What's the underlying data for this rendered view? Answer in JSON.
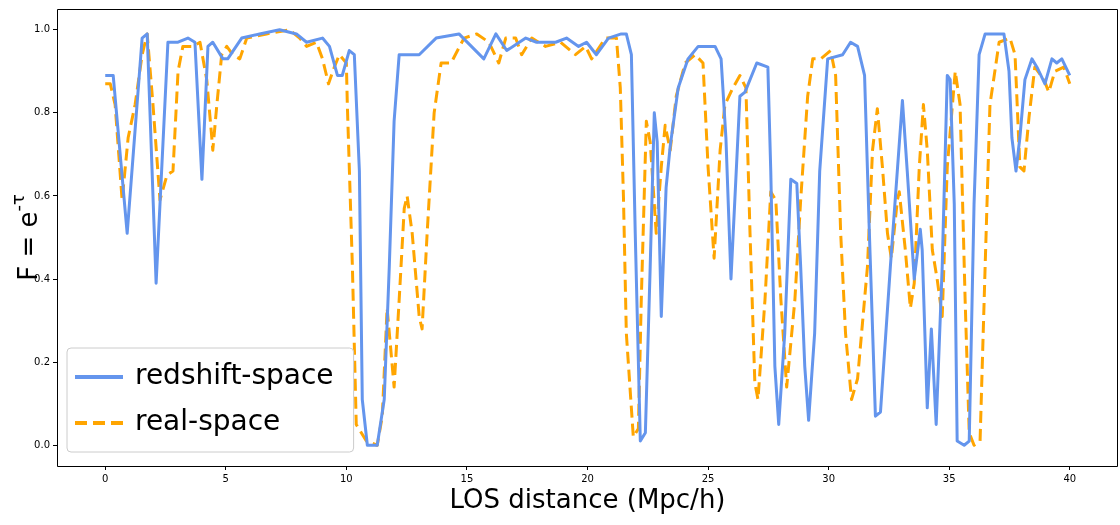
{
  "chart_data": {
    "type": "line",
    "xlabel": "LOS distance (Mpc/h)",
    "ylabel": "F = e$^{-τ}$",
    "xlim": [
      -2,
      42
    ],
    "ylim": [
      -0.05,
      1.05
    ],
    "xticks": [
      0,
      5,
      10,
      15,
      20,
      25,
      30,
      35,
      40
    ],
    "yticks": [
      {
        "value": 0,
        "label": "0.0"
      },
      {
        "value": 0.2,
        "label": "0.2"
      },
      {
        "value": 0.4,
        "label": "0.4"
      },
      {
        "value": 0.6,
        "label": "0.6"
      },
      {
        "value": 0.8,
        "label": "0.8"
      },
      {
        "value": 1,
        "label": "1.0"
      }
    ],
    "grid": false,
    "legend": "bottom left",
    "marker": "none",
    "series": [
      {
        "name": "redshift-space",
        "color": "#6495ed",
        "line_style": "solid",
        "x": [
          0,
          0.33,
          0.91,
          1.53,
          1.74,
          2.11,
          2.6,
          3.02,
          3.43,
          3.72,
          4.01,
          4.26,
          4.46,
          4.88,
          5.08,
          5.66,
          6.4,
          7.23,
          7.93,
          8.35,
          9.01,
          9.3,
          9.63,
          9.83,
          10.12,
          10.33,
          10.54,
          10.66,
          10.87,
          11.28,
          11.57,
          11.78,
          11.98,
          12.19,
          13.02,
          13.72,
          14.67,
          15.7,
          16.2,
          16.65,
          17.44,
          17.89,
          18.68,
          19.13,
          19.63,
          19.96,
          20.37,
          20.87,
          21.4,
          21.61,
          21.82,
          21.98,
          22.19,
          22.4,
          22.6,
          22.77,
          22.89,
          23.06,
          23.26,
          23.43,
          23.76,
          24.17,
          24.59,
          25.29,
          25.54,
          25.74,
          25.95,
          26.32,
          26.53,
          27.02,
          27.48,
          27.6,
          27.77,
          27.93,
          28.18,
          28.43,
          28.68,
          28.84,
          29.01,
          29.17,
          29.42,
          29.63,
          29.96,
          30.58,
          30.91,
          31.2,
          31.49,
          31.69,
          31.94,
          32.15,
          32.56,
          33.06,
          33.26,
          33.55,
          33.8,
          33.88,
          34.09,
          34.26,
          34.46,
          34.71,
          34.92,
          35.04,
          35.21,
          35.33,
          35.62,
          35.83,
          36.03,
          36.24,
          36.49,
          37.27,
          37.48,
          37.6,
          37.77,
          37.93,
          38.14,
          38.43,
          38.64,
          38.97,
          39.26,
          39.46,
          39.67,
          40
        ],
        "values": [
          0.89,
          0.89,
          0.51,
          0.98,
          0.99,
          0.39,
          0.97,
          0.97,
          0.98,
          0.97,
          0.64,
          0.96,
          0.97,
          0.93,
          0.93,
          0.98,
          0.99,
          1.0,
          0.99,
          0.97,
          0.98,
          0.96,
          0.89,
          0.89,
          0.95,
          0.94,
          0.66,
          0.11,
          0.0,
          0.0,
          0.11,
          0.43,
          0.78,
          0.94,
          0.94,
          0.98,
          0.99,
          0.93,
          0.99,
          0.95,
          0.98,
          0.97,
          0.97,
          0.98,
          0.96,
          0.97,
          0.94,
          0.98,
          0.99,
          0.99,
          0.94,
          0.51,
          0.01,
          0.03,
          0.43,
          0.8,
          0.73,
          0.31,
          0.62,
          0.72,
          0.86,
          0.93,
          0.96,
          0.96,
          0.93,
          0.74,
          0.4,
          0.84,
          0.85,
          0.92,
          0.91,
          0.66,
          0.19,
          0.05,
          0.27,
          0.64,
          0.63,
          0.43,
          0.19,
          0.06,
          0.27,
          0.66,
          0.93,
          0.94,
          0.97,
          0.96,
          0.89,
          0.51,
          0.07,
          0.08,
          0.43,
          0.83,
          0.66,
          0.4,
          0.52,
          0.47,
          0.09,
          0.28,
          0.05,
          0.43,
          0.89,
          0.88,
          0.58,
          0.01,
          0.0,
          0.01,
          0.58,
          0.94,
          0.99,
          0.99,
          0.9,
          0.74,
          0.66,
          0.74,
          0.88,
          0.93,
          0.91,
          0.87,
          0.93,
          0.92,
          0.93,
          0.89
        ]
      },
      {
        "name": "real-space",
        "color": "#ffa500",
        "line_style": "dashed",
        "x": [
          0,
          0.21,
          0.41,
          0.7,
          0.95,
          1.24,
          1.53,
          1.74,
          1.98,
          2.27,
          2.56,
          2.81,
          3.02,
          3.22,
          3.64,
          3.93,
          4.21,
          4.42,
          4.46,
          4.63,
          4.83,
          5.04,
          5.29,
          5.58,
          5.87,
          6.69,
          7.64,
          8.06,
          8.35,
          8.76,
          9.01,
          9.26,
          9.5,
          9.71,
          10.0,
          10.04,
          10.25,
          10.41,
          10.83,
          11.28,
          11.49,
          11.69,
          11.98,
          12.19,
          12.4,
          12.52,
          12.73,
          13.02,
          13.14,
          13.35,
          13.64,
          13.93,
          14.34,
          14.88,
          15.41,
          15.91,
          16.32,
          16.61,
          17.02,
          17.27,
          17.69,
          18.26,
          18.88,
          19.5,
          19.92,
          20.17,
          20.74,
          21.2,
          21.36,
          21.49,
          21.61,
          21.9,
          22.11,
          22.23,
          22.44,
          22.6,
          22.85,
          23.06,
          23.22,
          23.43,
          23.68,
          24.05,
          24.46,
          24.79,
          25.0,
          25.25,
          25.5,
          25.7,
          26.03,
          26.32,
          26.57,
          26.74,
          26.94,
          27.07,
          27.36,
          27.6,
          27.81,
          28.02,
          28.26,
          28.6,
          28.84,
          29.13,
          29.34,
          29.67,
          30.08,
          30.29,
          30.5,
          30.7,
          30.95,
          31.2,
          31.61,
          31.82,
          32.02,
          32.23,
          32.44,
          32.6,
          32.85,
          32.93,
          33.18,
          33.39,
          33.55,
          33.76,
          33.93,
          34.09,
          34.3,
          34.5,
          34.71,
          34.92,
          35.25,
          35.45,
          35.66,
          35.83,
          36.03,
          36.28,
          36.49,
          36.69,
          37.07,
          37.52,
          37.73,
          37.93,
          38.1,
          38.31,
          38.55,
          38.93,
          39.13,
          39.38,
          39.75,
          40
        ],
        "values": [
          0.87,
          0.87,
          0.82,
          0.59,
          0.74,
          0.82,
          0.94,
          0.99,
          0.82,
          0.59,
          0.65,
          0.66,
          0.9,
          0.96,
          0.96,
          0.97,
          0.88,
          0.74,
          0.71,
          0.82,
          0.94,
          0.96,
          0.94,
          0.93,
          0.98,
          0.99,
          1.0,
          0.98,
          0.96,
          0.97,
          0.93,
          0.87,
          0.91,
          0.94,
          0.92,
          0.82,
          0.43,
          0.05,
          0.01,
          0.0,
          0.07,
          0.33,
          0.14,
          0.35,
          0.57,
          0.6,
          0.51,
          0.31,
          0.28,
          0.51,
          0.8,
          0.92,
          0.92,
          0.98,
          0.99,
          0.97,
          0.92,
          0.98,
          0.98,
          0.94,
          0.98,
          0.96,
          0.97,
          0.94,
          0.96,
          0.93,
          0.98,
          0.98,
          0.86,
          0.6,
          0.27,
          0.02,
          0.04,
          0.35,
          0.78,
          0.73,
          0.51,
          0.67,
          0.77,
          0.71,
          0.84,
          0.92,
          0.94,
          0.92,
          0.67,
          0.45,
          0.71,
          0.82,
          0.86,
          0.89,
          0.86,
          0.51,
          0.15,
          0.11,
          0.35,
          0.61,
          0.59,
          0.35,
          0.14,
          0.35,
          0.59,
          0.84,
          0.93,
          0.93,
          0.95,
          0.89,
          0.51,
          0.27,
          0.11,
          0.16,
          0.43,
          0.71,
          0.81,
          0.67,
          0.51,
          0.45,
          0.59,
          0.61,
          0.47,
          0.33,
          0.39,
          0.67,
          0.82,
          0.71,
          0.47,
          0.4,
          0.31,
          0.67,
          0.9,
          0.82,
          0.35,
          0.03,
          0.0,
          0.01,
          0.43,
          0.82,
          0.97,
          0.98,
          0.94,
          0.67,
          0.66,
          0.79,
          0.91,
          0.88,
          0.85,
          0.9,
          0.91,
          0.87
        ]
      }
    ]
  }
}
